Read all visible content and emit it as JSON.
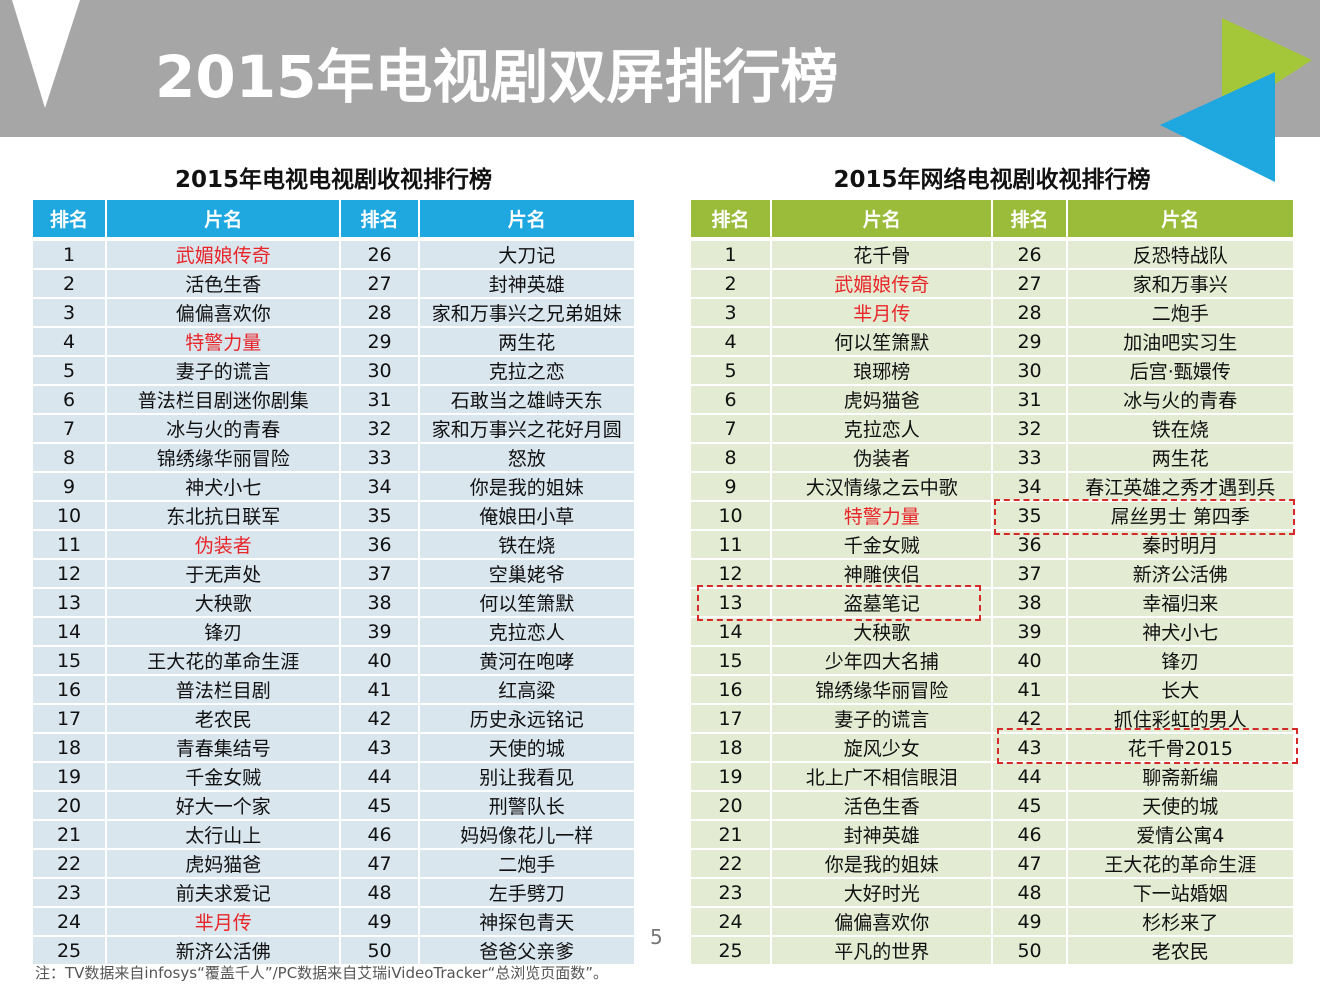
{
  "header": {
    "title": "2015年电视剧双屏排行榜"
  },
  "left_table": {
    "title": "2015年电视电视剧收视排行榜",
    "header_color": "#1fa7e0",
    "row_color": "#dae6ee",
    "headers": [
      "排名",
      "片名",
      "排名",
      "片名"
    ],
    "rows": [
      [
        1,
        {
          "text": "武媚娘传奇",
          "color": "#e8262a"
        },
        26,
        "大刀记"
      ],
      [
        2,
        "活色生香",
        27,
        "封神英雄"
      ],
      [
        3,
        "偏偏喜欢你",
        28,
        "家和万事兴之兄弟姐妹"
      ],
      [
        4,
        {
          "text": "特警力量",
          "color": "#e8262a"
        },
        29,
        "两生花"
      ],
      [
        5,
        "妻子的谎言",
        30,
        "克拉之恋"
      ],
      [
        6,
        "普法栏目剧迷你剧集",
        31,
        "石敢当之雄峙天东"
      ],
      [
        7,
        "冰与火的青春",
        32,
        "家和万事兴之花好月圆"
      ],
      [
        8,
        "锦绣缘华丽冒险",
        33,
        "怒放"
      ],
      [
        9,
        "神犬小七",
        34,
        "你是我的姐妹"
      ],
      [
        10,
        "东北抗日联军",
        35,
        "俺娘田小草"
      ],
      [
        11,
        {
          "text": "伪装者",
          "color": "#e8262a"
        },
        36,
        "铁在烧"
      ],
      [
        12,
        "于无声处",
        37,
        "空巢姥爷"
      ],
      [
        13,
        "大秧歌",
        38,
        "何以笙箫默"
      ],
      [
        14,
        "锋刃",
        39,
        "克拉恋人"
      ],
      [
        15,
        "王大花的革命生涯",
        40,
        "黄河在咆哮"
      ],
      [
        16,
        "普法栏目剧",
        41,
        "红高粱"
      ],
      [
        17,
        "老农民",
        42,
        "历史永远铭记"
      ],
      [
        18,
        "青春集结号",
        43,
        "天使的城"
      ],
      [
        19,
        "千金女贼",
        44,
        "别让我看见"
      ],
      [
        20,
        "好大一个家",
        45,
        "刑警队长"
      ],
      [
        21,
        "太行山上",
        46,
        "妈妈像花儿一样"
      ],
      [
        22,
        "虎妈猫爸",
        47,
        "二炮手"
      ],
      [
        23,
        "前夫求爱记",
        48,
        "左手劈刀"
      ],
      [
        24,
        {
          "text": "芈月传",
          "color": "#e8262a"
        },
        49,
        "神探包青天"
      ],
      [
        25,
        "新济公活佛",
        50,
        "爸爸父亲爹"
      ]
    ]
  },
  "right_table": {
    "title": "2015年网络电视剧收视排行榜",
    "header_color": "#9bbb3b",
    "row_color": "#e3ebd2",
    "headers": [
      "排名",
      "片名",
      "排名",
      "片名"
    ],
    "rows": [
      [
        1,
        "花千骨",
        26,
        "反恐特战队"
      ],
      [
        2,
        {
          "text": "武媚娘传奇",
          "color": "#e8262a"
        },
        27,
        "家和万事兴"
      ],
      [
        3,
        {
          "text": "芈月传",
          "color": "#e8262a"
        },
        28,
        "二炮手"
      ],
      [
        4,
        "何以笙箫默",
        29,
        "加油吧实习生"
      ],
      [
        5,
        "琅琊榜",
        30,
        "后宫·甄嬛传"
      ],
      [
        6,
        "虎妈猫爸",
        31,
        "冰与火的青春"
      ],
      [
        7,
        "克拉恋人",
        32,
        "铁在烧"
      ],
      [
        8,
        "伪装者",
        33,
        "两生花"
      ],
      [
        9,
        "大汉情缘之云中歌",
        34,
        "春江英雄之秀才遇到兵"
      ],
      [
        10,
        {
          "text": "特警力量",
          "color": "#e8262a"
        },
        35,
        "屌丝男士 第四季"
      ],
      [
        11,
        "千金女贼",
        36,
        "秦时明月"
      ],
      [
        12,
        "神雕侠侣",
        37,
        "新济公活佛"
      ],
      [
        13,
        "盗墓笔记",
        38,
        "幸福归来"
      ],
      [
        14,
        "大秧歌",
        39,
        "神犬小七"
      ],
      [
        15,
        "少年四大名捕",
        40,
        "锋刃"
      ],
      [
        16,
        "锦绣缘华丽冒险",
        41,
        "长大"
      ],
      [
        17,
        "妻子的谎言",
        42,
        "抓住彩虹的男人"
      ],
      [
        18,
        "旋风少女",
        43,
        "花千骨2015"
      ],
      [
        19,
        "北上广不相信眼泪",
        44,
        "聊斋新编"
      ],
      [
        20,
        "活色生香",
        45,
        "天使的城"
      ],
      [
        21,
        "封神英雄",
        46,
        "爱情公寓4"
      ],
      [
        22,
        "你是我的姐妹",
        47,
        "王大花的革命生涯"
      ],
      [
        23,
        "大好时光",
        48,
        "下一站婚姻"
      ],
      [
        24,
        "偏偏喜欢你",
        49,
        "杉杉来了"
      ],
      [
        25,
        "平凡的世界",
        50,
        "老农民"
      ]
    ]
  },
  "page_number": 5,
  "footnote": "注：TV数据来自infosys“覆盖千人”/PC数据来自艾瑞iVideoTracker“总浏览页面数”。"
}
